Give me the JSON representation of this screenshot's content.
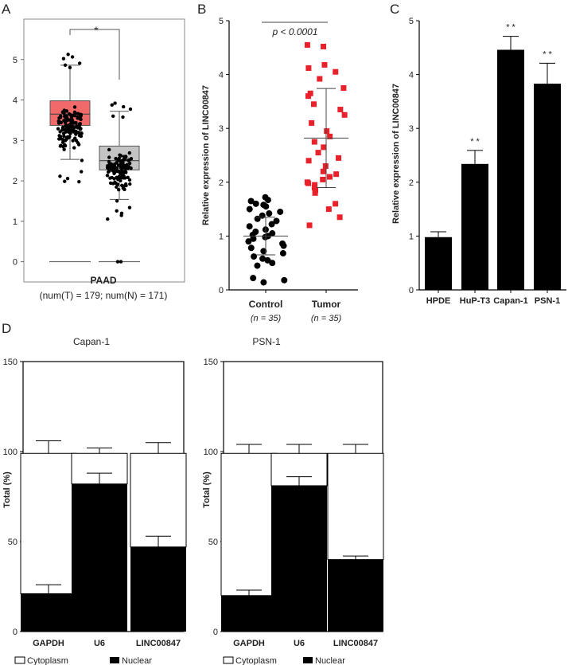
{
  "panels": [
    {
      "letter": "A",
      "chart_data": {
        "type": "box",
        "xlabel": "PAAD",
        "subtitle": "(num(T) = 179; num(N) = 171)",
        "ylim": [
          -0.5,
          6.0
        ],
        "yticks": [
          0,
          1,
          2,
          3,
          4,
          5
        ],
        "significance": "*",
        "boxes": [
          {
            "color": "#f06a6a",
            "q1": 3.37,
            "median": 3.65,
            "q3": 3.98,
            "whisker_low": 2.53,
            "whisker_high": 4.86,
            "min_line": 0.0
          },
          {
            "color": "#c4c4c4",
            "q1": 2.27,
            "median": 2.5,
            "q3": 2.86,
            "whisker_low": 1.54,
            "whisker_high": 3.72,
            "min_line": 0.0
          }
        ]
      }
    },
    {
      "letter": "B",
      "chart_data": {
        "type": "scatter",
        "ylabel": "Relative expression of LINC00847",
        "ylim": [
          0,
          5
        ],
        "yticks": [
          0,
          1,
          2,
          3,
          4,
          5
        ],
        "annotation": "p < 0.0001",
        "categories": [
          "Control",
          "Tumor"
        ],
        "category_notes": [
          "(n = 35)",
          "(n = 35)"
        ],
        "series": [
          {
            "color": "#000000",
            "mean": 1.0,
            "sd": 0.35,
            "values": [
              1.72,
              1.67,
              1.65,
              1.6,
              1.58,
              1.55,
              1.5,
              1.45,
              1.42,
              1.38,
              1.32,
              1.28,
              1.22,
              1.18,
              1.12,
              1.08,
              1.05,
              1.02,
              1.0,
              0.98,
              0.95,
              0.9,
              0.86,
              0.82,
              0.78,
              0.72,
              0.68,
              0.62,
              0.58,
              0.55,
              0.5,
              0.45,
              0.22,
              0.18,
              0.14
            ]
          },
          {
            "color": "#e8212a",
            "mean": 2.82,
            "sd": 0.92,
            "values": [
              4.55,
              4.52,
              4.18,
              4.12,
              4.05,
              3.92,
              3.75,
              3.65,
              3.6,
              3.45,
              3.35,
              3.25,
              3.1,
              2.95,
              2.85,
              2.75,
              2.65,
              2.55,
              2.45,
              2.4,
              2.3,
              2.2,
              2.15,
              2.1,
              2.05,
              2.0,
              1.98,
              1.95,
              1.9,
              1.85,
              1.8,
              1.6,
              1.5,
              1.35,
              1.2
            ]
          }
        ]
      }
    },
    {
      "letter": "C",
      "chart_data": {
        "type": "bar",
        "ylabel": "Relative expression of LINC00847",
        "ylim": [
          0,
          5
        ],
        "yticks": [
          0,
          1,
          2,
          3,
          4,
          5
        ],
        "categories": [
          "HPDE",
          "HuP-T3",
          "Capan-1",
          "PSN-1"
        ],
        "values": [
          0.98,
          2.34,
          4.46,
          3.83
        ],
        "errors": [
          0.1,
          0.25,
          0.25,
          0.38
        ],
        "marks": [
          "",
          "* *",
          "* *",
          "* *"
        ]
      }
    },
    {
      "letter": "D",
      "chart_data": [
        {
          "type": "stacked-bar",
          "title": "Capan-1",
          "ylabel": "Total (%)",
          "ylim": [
            0,
            150
          ],
          "yticks": [
            0,
            50,
            100,
            150
          ],
          "categories": [
            "GAPDH",
            "U6",
            "LINC00847"
          ],
          "series": [
            {
              "name": "Nuclear",
              "values": [
                21,
                82,
                47
              ],
              "errors": [
                5,
                6,
                6
              ]
            },
            {
              "name": "Cytoplasm",
              "values": [
                78,
                17,
                52
              ],
              "errors": [
                7,
                3,
                6
              ]
            }
          ]
        },
        {
          "type": "stacked-bar",
          "title": "PSN-1",
          "ylabel": "Total (%)",
          "ylim": [
            0,
            150
          ],
          "yticks": [
            0,
            50,
            100,
            150
          ],
          "categories": [
            "GAPDH",
            "U6",
            "LINC00847"
          ],
          "series": [
            {
              "name": "Nuclear",
              "values": [
                20,
                81,
                40
              ],
              "errors": [
                3,
                5,
                2
              ]
            },
            {
              "name": "Cytoplasm",
              "values": [
                79,
                18,
                59
              ],
              "errors": [
                5,
                5,
                5
              ]
            }
          ]
        }
      ]
    }
  ]
}
